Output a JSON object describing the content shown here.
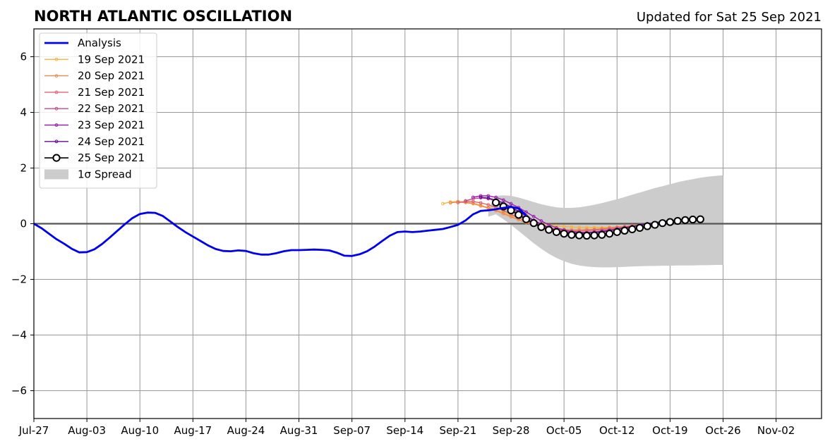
{
  "header": {
    "title": "NORTH ATLANTIC OSCILLATION",
    "updated": "Updated for Sat 25 Sep 2021"
  },
  "chart_data": {
    "type": "line",
    "title": "NORTH ATLANTIC OSCILLATION",
    "subtitle": "Updated for Sat 25 Sep 2021",
    "xlabel": "",
    "ylabel": "",
    "x_axis": {
      "type": "date",
      "range": [
        "2021-07-27",
        "2021-11-08"
      ],
      "ticks": [
        {
          "date": "2021-07-27",
          "label": "Jul-27"
        },
        {
          "date": "2021-08-03",
          "label": "Aug-03"
        },
        {
          "date": "2021-08-10",
          "label": "Aug-10"
        },
        {
          "date": "2021-08-17",
          "label": "Aug-17"
        },
        {
          "date": "2021-08-24",
          "label": "Aug-24"
        },
        {
          "date": "2021-08-31",
          "label": "Aug-31"
        },
        {
          "date": "2021-09-07",
          "label": "Sep-07"
        },
        {
          "date": "2021-09-14",
          "label": "Sep-14"
        },
        {
          "date": "2021-09-21",
          "label": "Sep-21"
        },
        {
          "date": "2021-09-28",
          "label": "Sep-28"
        },
        {
          "date": "2021-10-05",
          "label": "Oct-05"
        },
        {
          "date": "2021-10-12",
          "label": "Oct-12"
        },
        {
          "date": "2021-10-19",
          "label": "Oct-19"
        },
        {
          "date": "2021-10-26",
          "label": "Oct-26"
        },
        {
          "date": "2021-11-02",
          "label": "Nov-02"
        }
      ]
    },
    "y_axis": {
      "range": [
        -7,
        7
      ],
      "ticks": [
        {
          "value": -6,
          "label": "−6"
        },
        {
          "value": -4,
          "label": "−4"
        },
        {
          "value": -2,
          "label": "−2"
        },
        {
          "value": 0,
          "label": "0"
        },
        {
          "value": 2,
          "label": "2"
        },
        {
          "value": 4,
          "label": "4"
        },
        {
          "value": 6,
          "label": "6"
        }
      ]
    },
    "grid": true,
    "legend_position": "upper-left",
    "zero_line_color": "#555555",
    "grid_color": "#999999",
    "analysis": {
      "name": "Analysis",
      "color": "#0000ee",
      "start_date": "2021-07-27",
      "values": [
        0.0,
        -0.16,
        -0.36,
        -0.56,
        -0.72,
        -0.9,
        -1.03,
        -1.02,
        -0.92,
        -0.73,
        -0.5,
        -0.26,
        -0.02,
        0.2,
        0.35,
        0.4,
        0.39,
        0.28,
        0.08,
        -0.12,
        -0.3,
        -0.46,
        -0.62,
        -0.78,
        -0.91,
        -0.98,
        -0.99,
        -0.96,
        -0.98,
        -1.06,
        -1.11,
        -1.11,
        -1.06,
        -0.99,
        -0.95,
        -0.95,
        -0.94,
        -0.93,
        -0.94,
        -0.96,
        -1.04,
        -1.15,
        -1.16,
        -1.1,
        -0.99,
        -0.82,
        -0.62,
        -0.43,
        -0.3,
        -0.28,
        -0.3,
        -0.28,
        -0.25,
        -0.22,
        -0.19,
        -0.12,
        -0.04,
        0.12,
        0.34,
        0.46,
        0.48,
        0.52,
        0.57,
        0.6,
        0.55,
        0.3
      ]
    },
    "series": [
      {
        "name": "19 Sep 2021",
        "color": "#f5b43c",
        "start_date": "2021-09-19",
        "values": [
          0.72,
          0.78,
          0.8,
          0.78,
          0.74,
          0.66,
          0.58,
          0.5,
          0.4,
          0.3,
          0.2,
          0.11,
          0.04,
          0.0,
          -0.04,
          -0.08,
          -0.1,
          -0.12,
          -0.13,
          -0.14,
          -0.14,
          -0.14,
          -0.13,
          -0.12,
          -0.1,
          -0.08
        ]
      },
      {
        "name": "20 Sep 2021",
        "color": "#ef8a4b",
        "start_date": "2021-09-20",
        "values": [
          0.75,
          0.78,
          0.76,
          0.72,
          0.64,
          0.56,
          0.47,
          0.36,
          0.25,
          0.14,
          0.04,
          -0.04,
          -0.11,
          -0.15,
          -0.18,
          -0.2,
          -0.22,
          -0.22,
          -0.21,
          -0.2,
          -0.18,
          -0.15,
          -0.12,
          -0.1,
          -0.07,
          -0.04
        ]
      },
      {
        "name": "21 Sep 2021",
        "color": "#e0636e",
        "start_date": "2021-09-21",
        "values": [
          0.76,
          0.8,
          0.8,
          0.75,
          0.68,
          0.58,
          0.47,
          0.34,
          0.21,
          0.1,
          0.0,
          -0.09,
          -0.16,
          -0.21,
          -0.24,
          -0.26,
          -0.26,
          -0.25,
          -0.23,
          -0.21,
          -0.18,
          -0.15,
          -0.12,
          -0.09,
          -0.06,
          -0.03
        ]
      },
      {
        "name": "22 Sep 2021",
        "color": "#c4488e",
        "start_date": "2021-09-22",
        "values": [
          0.82,
          0.9,
          0.93,
          0.9,
          0.8,
          0.68,
          0.54,
          0.38,
          0.22,
          0.08,
          -0.05,
          -0.15,
          -0.23,
          -0.28,
          -0.31,
          -0.32,
          -0.31,
          -0.29,
          -0.26,
          -0.22,
          -0.18,
          -0.14,
          -0.1,
          -0.05,
          -0.02,
          0.02
        ]
      },
      {
        "name": "23 Sep 2021",
        "color": "#9b1fab",
        "start_date": "2021-09-23",
        "values": [
          0.95,
          1.0,
          1.0,
          0.95,
          0.85,
          0.72,
          0.58,
          0.42,
          0.26,
          0.1,
          -0.04,
          -0.15,
          -0.23,
          -0.28,
          -0.31,
          -0.32,
          -0.31,
          -0.28,
          -0.25,
          -0.2,
          -0.16,
          -0.11,
          -0.06,
          -0.02,
          0.02,
          0.06
        ]
      },
      {
        "name": "24 Sep 2021",
        "color": "#5b0f9c",
        "start_date": "2021-09-24",
        "values": [
          0.95,
          0.92,
          0.85,
          0.74,
          0.6,
          0.44,
          0.28,
          0.12,
          -0.02,
          -0.14,
          -0.24,
          -0.3,
          -0.34,
          -0.35,
          -0.34,
          -0.32,
          -0.29,
          -0.25,
          -0.2,
          -0.15,
          -0.1,
          -0.05,
          0.0,
          0.04,
          0.08,
          0.12
        ]
      },
      {
        "name": "25 Sep 2021",
        "color": "#000000",
        "hollow_markers": true,
        "start_date": "2021-09-26",
        "values": [
          0.76,
          0.62,
          0.48,
          0.32,
          0.16,
          0.02,
          -0.12,
          -0.22,
          -0.3,
          -0.36,
          -0.4,
          -0.42,
          -0.43,
          -0.42,
          -0.4,
          -0.36,
          -0.3,
          -0.25,
          -0.2,
          -0.15,
          -0.09,
          -0.04,
          0.02,
          0.06,
          0.1,
          0.13,
          0.15,
          0.16
        ]
      }
    ],
    "spread": {
      "name": "1σ Spread",
      "color": "#cccccc",
      "start_date": "2021-09-25",
      "upper": [
        0.55,
        1.0,
        1.02,
        1.0,
        0.94,
        0.86,
        0.78,
        0.7,
        0.64,
        0.59,
        0.57,
        0.57,
        0.59,
        0.63,
        0.68,
        0.74,
        0.81,
        0.88,
        0.96,
        1.04,
        1.12,
        1.2,
        1.28,
        1.35,
        1.42,
        1.49,
        1.55,
        1.6,
        1.65,
        1.69,
        1.72,
        1.74
      ],
      "lower": [
        0.25,
        0.34,
        0.16,
        -0.04,
        -0.26,
        -0.48,
        -0.7,
        -0.9,
        -1.08,
        -1.23,
        -1.35,
        -1.44,
        -1.5,
        -1.54,
        -1.56,
        -1.57,
        -1.57,
        -1.56,
        -1.55,
        -1.54,
        -1.53,
        -1.52,
        -1.52,
        -1.51,
        -1.51,
        -1.5,
        -1.5,
        -1.5,
        -1.49,
        -1.49,
        -1.48,
        -1.48
      ]
    }
  }
}
